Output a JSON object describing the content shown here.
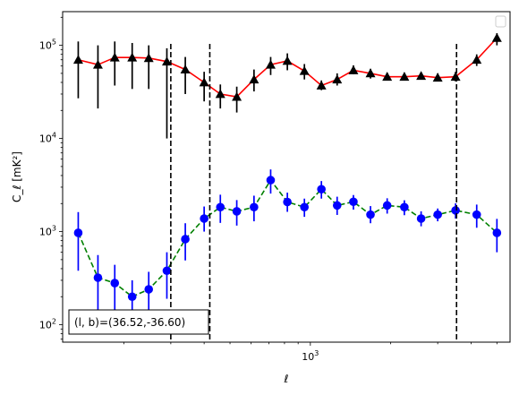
{
  "chart_data": {
    "type": "line",
    "x_scale": "log",
    "y_scale": "log",
    "xlabel": "ℓ",
    "ylabel": "C_ℓ [mK²]",
    "xlim": [
      118,
      5600
    ],
    "ylim": [
      65,
      230000
    ],
    "x_tick_labels": [
      {
        "value": 1000,
        "base": "10",
        "exp": "3"
      }
    ],
    "y_tick_labels": [
      {
        "value": 100,
        "base": "10",
        "exp": "2"
      },
      {
        "value": 1000,
        "base": "10",
        "exp": "3"
      },
      {
        "value": 10000,
        "base": "10",
        "exp": "4"
      },
      {
        "value": 100000,
        "base": "10",
        "exp": "5"
      }
    ],
    "grid": false,
    "legend": "top-right (empty)",
    "vertical_lines": [
      300,
      420,
      3530
    ],
    "annotation": "(l, b)=(36.52,-36.60)",
    "series": [
      {
        "marker": "triangle",
        "marker_color": "#000000",
        "line_color": "#ff0000",
        "line_style": "solid",
        "errorbar_color": "#000000",
        "x": [
          135,
          160,
          185,
          215,
          248,
          290,
          340,
          400,
          460,
          530,
          615,
          710,
          820,
          950,
          1100,
          1260,
          1450,
          1680,
          1940,
          2250,
          2600,
          3000,
          3500,
          4200,
          5000
        ],
        "y": [
          70000,
          62000,
          74000,
          74000,
          73000,
          67000,
          55000,
          40000,
          30000,
          28000,
          43000,
          62000,
          68000,
          53000,
          37000,
          43000,
          54000,
          50000,
          46000,
          46000,
          47000,
          45000,
          46000,
          70000,
          120000
        ],
        "ylow": [
          27000,
          21000,
          37000,
          34000,
          34000,
          10000,
          30000,
          25000,
          21000,
          19000,
          32000,
          48000,
          54000,
          43000,
          33000,
          37000,
          49000,
          44000,
          42000,
          43000,
          43000,
          41000,
          41000,
          60000,
          100000
        ],
        "yhigh": [
          110000,
          100000,
          110000,
          106000,
          100000,
          93000,
          75000,
          52000,
          38000,
          36000,
          55000,
          75000,
          82000,
          63000,
          42000,
          50000,
          61000,
          56000,
          51000,
          51000,
          51000,
          50000,
          52000,
          80000,
          135000
        ]
      },
      {
        "marker": "circle",
        "marker_color": "#0000ff",
        "line_color": "#008000",
        "line_style": "dashed",
        "errorbar_color": "#0000ff",
        "x": [
          135,
          160,
          185,
          215,
          248,
          290,
          340,
          400,
          460,
          530,
          615,
          710,
          820,
          950,
          1100,
          1260,
          1450,
          1680,
          1940,
          2250,
          2600,
          3000,
          3500,
          4200,
          5000
        ],
        "y": [
          970,
          320,
          280,
          200,
          240,
          380,
          830,
          1380,
          1830,
          1650,
          1830,
          3570,
          2080,
          1830,
          2850,
          1910,
          2090,
          1520,
          1910,
          1830,
          1380,
          1520,
          1690,
          1520,
          970
        ],
        "ylow": [
          380,
          140,
          120,
          120,
          120,
          190,
          490,
          1000,
          1240,
          1160,
          1290,
          2560,
          1630,
          1440,
          2260,
          1510,
          1720,
          1230,
          1560,
          1500,
          1140,
          1290,
          1380,
          1100,
          600
        ],
        "yhigh": [
          1620,
          560,
          440,
          300,
          370,
          600,
          1230,
          1860,
          2490,
          2180,
          2430,
          4650,
          2620,
          2260,
          3490,
          2370,
          2470,
          1880,
          2280,
          2170,
          1650,
          1770,
          2010,
          1950,
          1370
        ]
      }
    ]
  }
}
